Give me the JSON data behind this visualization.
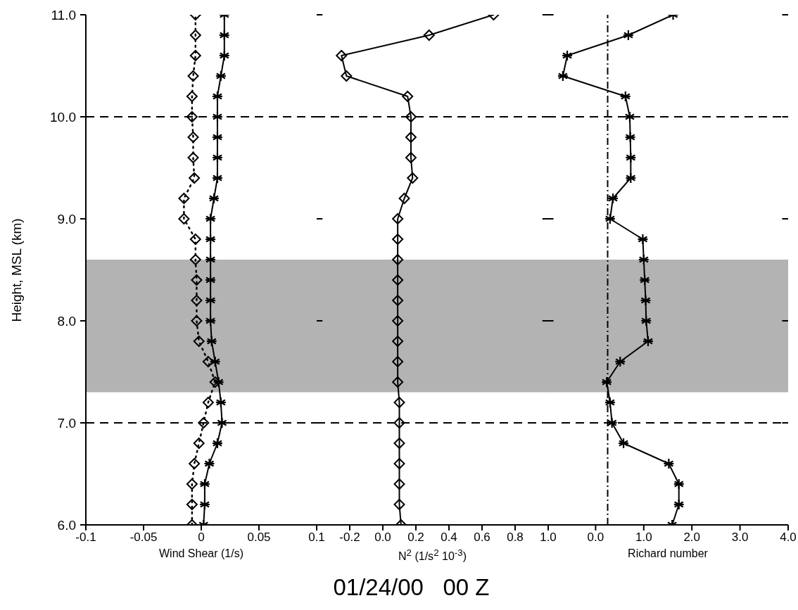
{
  "chart_data": [
    {
      "type": "line",
      "xlabel": "Wind Shear (1/s)",
      "ylabel": "Height, MSL (km)",
      "xlim": [
        -0.1,
        0.1
      ],
      "xticks": [
        -0.1,
        -0.05,
        0,
        0.05,
        0.1
      ],
      "ylim": [
        6,
        11
      ],
      "yticks": [
        {
          "value": 6,
          "label": "6.0"
        },
        {
          "value": 7,
          "label": "7.0"
        },
        {
          "value": 8,
          "label": "8.0"
        },
        {
          "value": 9,
          "label": "9.0"
        },
        {
          "value": 10,
          "label": "10.0"
        },
        {
          "value": 11,
          "label": "11.0"
        }
      ],
      "series": [
        {
          "color": "#000000",
          "marker": "cross",
          "line_style": "solid",
          "x": [
            0.002,
            0.003,
            0.003,
            0.007,
            0.014,
            0.018,
            0.017,
            0.015,
            0.012,
            0.009,
            0.008,
            0.008,
            0.008,
            0.008,
            0.008,
            0.008,
            0.011,
            0.014,
            0.014,
            0.014,
            0.014,
            0.014,
            0.017,
            0.02,
            0.02,
            0.02
          ],
          "values": [
            6.0,
            6.2,
            6.4,
            6.6,
            6.8,
            7.0,
            7.2,
            7.4,
            7.6,
            7.8,
            8.0,
            8.2,
            8.4,
            8.6,
            8.8,
            9.0,
            9.2,
            9.4,
            9.6,
            9.8,
            10.0,
            10.2,
            10.4,
            10.6,
            10.8,
            11.0
          ]
        },
        {
          "color": "#000000",
          "marker": "diamond",
          "line_style": "dotted",
          "x": [
            -0.008,
            -0.008,
            -0.008,
            -0.006,
            -0.002,
            0.002,
            0.006,
            0.012,
            0.006,
            -0.002,
            -0.004,
            -0.004,
            -0.004,
            -0.005,
            -0.005,
            -0.015,
            -0.015,
            -0.006,
            -0.007,
            -0.007,
            -0.008,
            -0.008,
            -0.007,
            -0.005,
            -0.005,
            -0.005
          ],
          "values": [
            6.0,
            6.2,
            6.4,
            6.6,
            6.8,
            7.0,
            7.2,
            7.4,
            7.6,
            7.8,
            8.0,
            8.2,
            8.4,
            8.6,
            8.8,
            9.0,
            9.2,
            9.4,
            9.6,
            9.8,
            10.0,
            10.2,
            10.4,
            10.6,
            10.8,
            11.0
          ]
        }
      ],
      "ref_lines": [
        {
          "axis": "y",
          "value": 7,
          "line_style": "dashed"
        },
        {
          "axis": "y",
          "value": 10,
          "line_style": "dashed"
        }
      ],
      "bands": [
        {
          "axis": "y",
          "from": 7.3,
          "to": 8.6,
          "color": "#b3b3b3"
        }
      ]
    },
    {
      "type": "line",
      "xlabel": "N$^{2}$ (1/s$^{2}$ 10$^{-3}$)",
      "tick_labels": "x",
      "xlim": [
        -0.4,
        1.0
      ],
      "xticks": [
        -0.2,
        {
          "value": 0,
          "label": "0.0"
        },
        0.2,
        0.4,
        0.6,
        0.8,
        {
          "value": 1,
          "label": "1.0"
        }
      ],
      "ylim": [
        6,
        11
      ],
      "yticks": [
        6,
        7,
        8,
        9,
        10,
        11
      ],
      "series": [
        {
          "color": "#000000",
          "marker": "diamond",
          "line_style": "solid",
          "x": [
            0.11,
            0.1,
            0.1,
            0.1,
            0.1,
            0.1,
            0.1,
            0.09,
            0.09,
            0.09,
            0.09,
            0.09,
            0.09,
            0.09,
            0.09,
            0.09,
            0.13,
            0.18,
            0.17,
            0.17,
            0.17,
            0.15,
            -0.22,
            -0.25,
            0.28,
            0.67
          ],
          "values": [
            6.0,
            6.2,
            6.4,
            6.6,
            6.8,
            7.0,
            7.2,
            7.4,
            7.6,
            7.8,
            8.0,
            8.2,
            8.4,
            8.6,
            8.8,
            9.0,
            9.2,
            9.4,
            9.6,
            9.8,
            10.0,
            10.2,
            10.4,
            10.6,
            10.8,
            11.0
          ]
        }
      ],
      "ref_lines": [
        {
          "axis": "y",
          "value": 7,
          "line_style": "dashed"
        },
        {
          "axis": "y",
          "value": 10,
          "line_style": "dashed"
        }
      ],
      "bands": [
        {
          "axis": "y",
          "from": 7.3,
          "to": 8.6,
          "color": "#b3b3b3"
        }
      ],
      "annotations": [
        "01/24/00   00 Z"
      ]
    },
    {
      "type": "line",
      "xlabel": "Richard number",
      "tick_labels": "x",
      "xlim": [
        -1,
        4
      ],
      "xticks": [
        {
          "value": 0,
          "label": "0.0"
        },
        {
          "value": 1,
          "label": "1.0"
        },
        {
          "value": 2,
          "label": "2.0"
        },
        {
          "value": 3,
          "label": "3.0"
        },
        {
          "value": 4,
          "label": "4.0"
        }
      ],
      "ylim": [
        6,
        11
      ],
      "yticks": [
        6,
        7,
        8,
        9,
        10,
        11
      ],
      "series": [
        {
          "color": "#000000",
          "marker": "cross",
          "line_style": "solid",
          "x": [
            1.59,
            1.73,
            1.73,
            1.52,
            0.58,
            0.34,
            0.3,
            0.23,
            0.51,
            1.09,
            1.05,
            1.04,
            1.02,
            1.0,
            0.98,
            0.3,
            0.36,
            0.73,
            0.73,
            0.72,
            0.71,
            0.62,
            -0.68,
            -0.59,
            0.68,
            1.61
          ],
          "values": [
            6.0,
            6.2,
            6.4,
            6.6,
            6.8,
            7.0,
            7.2,
            7.4,
            7.6,
            7.8,
            8.0,
            8.2,
            8.4,
            8.6,
            8.8,
            9.0,
            9.2,
            9.4,
            9.6,
            9.8,
            10.0,
            10.2,
            10.4,
            10.6,
            10.8,
            11.0
          ]
        }
      ],
      "ref_lines": [
        {
          "axis": "y",
          "value": 7,
          "line_style": "dashed"
        },
        {
          "axis": "y",
          "value": 10,
          "line_style": "dashed"
        },
        {
          "axis": "x",
          "value": 0.25,
          "line_style": "dashdot"
        }
      ],
      "bands": [
        {
          "axis": "y",
          "from": 7.3,
          "to": 8.6,
          "color": "#b3b3b3"
        }
      ]
    }
  ]
}
